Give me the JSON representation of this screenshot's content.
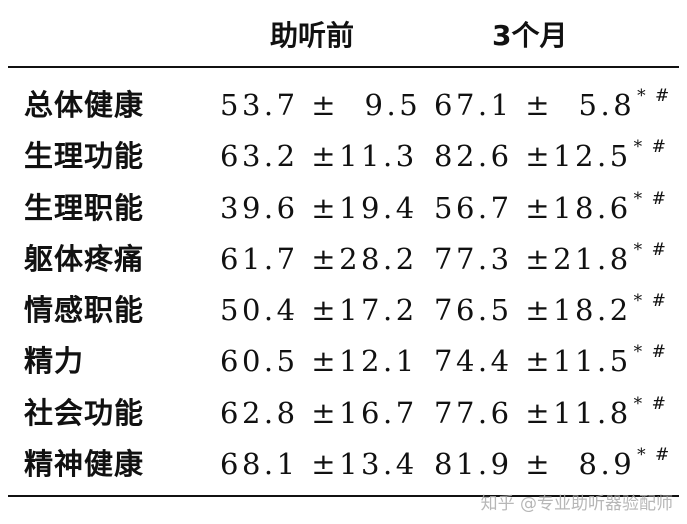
{
  "table": {
    "headers": [
      "助听前",
      "3个月"
    ],
    "rows": [
      {
        "label": "总体健康",
        "before": "53.7 ±  9.5",
        "after": "67.1 ±  5.8",
        "mark": "* #"
      },
      {
        "label": "生理功能",
        "before": "63.2 ±11.3",
        "after": "82.6 ±12.5",
        "mark": "* #"
      },
      {
        "label": "生理职能",
        "before": "39.6 ±19.4",
        "after": "56.7 ±18.6",
        "mark": "* #"
      },
      {
        "label": "躯体疼痛",
        "before": "61.7 ±28.2",
        "after": "77.3 ±21.8",
        "mark": "* #"
      },
      {
        "label": "情感职能",
        "before": "50.4 ±17.2",
        "after": "76.5 ±18.2",
        "mark": "* #"
      },
      {
        "label": "精力",
        "before": "60.5 ±12.1",
        "after": "74.4 ±11.5",
        "mark": "* #"
      },
      {
        "label": "社会功能",
        "before": "62.8 ±16.7",
        "after": "77.6 ±11.8",
        "mark": "* #"
      },
      {
        "label": "精神健康",
        "before": "68.1 ±13.4",
        "after": "81.9 ±  8.9",
        "mark": "* #"
      }
    ]
  },
  "watermark": "知乎 @专业助听器验配师"
}
